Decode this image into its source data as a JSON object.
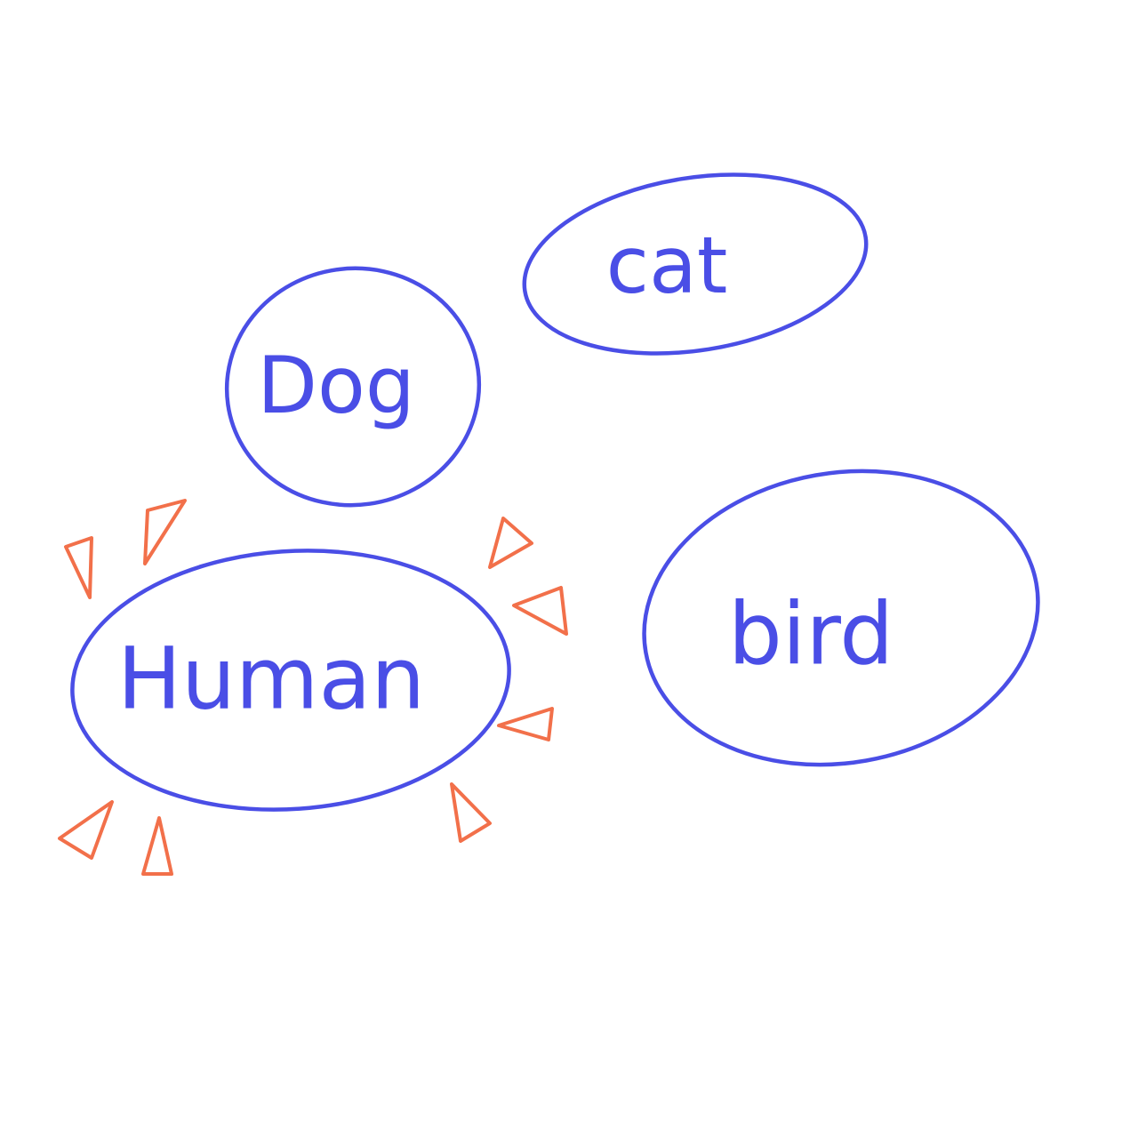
{
  "colors": {
    "bubble": "#4a4ee6",
    "highlight": "#f2704a",
    "background": "#ffffff"
  },
  "nodes": [
    {
      "id": "dog",
      "label": "Dog",
      "highlighted": false
    },
    {
      "id": "cat",
      "label": "cat",
      "highlighted": false
    },
    {
      "id": "human",
      "label": "Human",
      "highlighted": true
    },
    {
      "id": "bird",
      "label": "bird",
      "highlighted": false
    }
  ]
}
